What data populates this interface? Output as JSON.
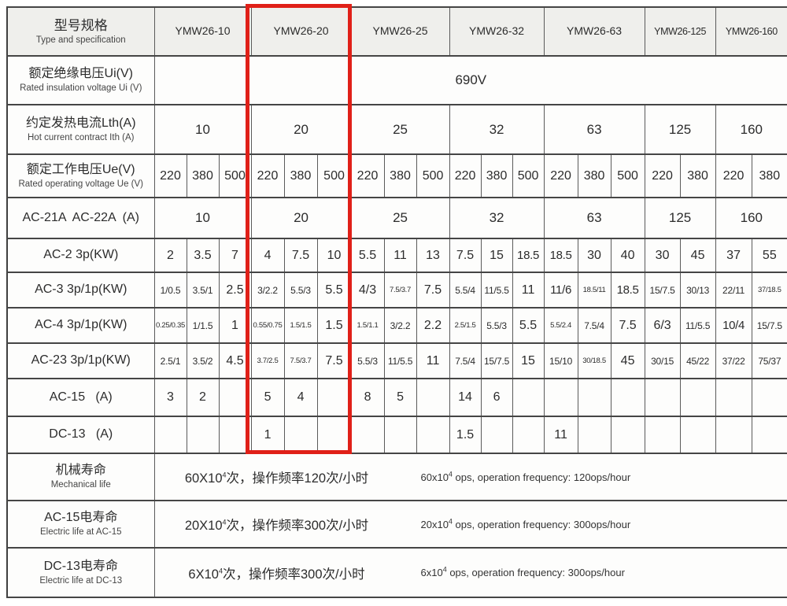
{
  "page": {
    "background": "#ffffff",
    "header_fill": "#efefec",
    "highlight_color": "#e02018",
    "highlighted_model": "YMW26-20"
  },
  "table": {
    "header": {
      "label_cn": "型号规格",
      "label_en": "Type and specification",
      "models": [
        {
          "name": "YMW26-10",
          "subcols": 3
        },
        {
          "name": "YMW26-20",
          "subcols": 3
        },
        {
          "name": "YMW26-25",
          "subcols": 3
        },
        {
          "name": "YMW26-32",
          "subcols": 3
        },
        {
          "name": "YMW26-63",
          "subcols": 3
        },
        {
          "name": "YMW26-125",
          "subcols": 2
        },
        {
          "name": "YMW26-160",
          "subcols": 2
        }
      ]
    },
    "rows": [
      {
        "id": "ui",
        "label_cn": "额定绝缘电压Ui(V)",
        "label_en": "Rated insulation voltage Ui (V)",
        "span": "full",
        "value": "690V"
      },
      {
        "id": "lth",
        "label_cn": "约定发热电流Lth(A)",
        "label_en": "Hot current contract Ith (A)",
        "span": "model",
        "values": [
          "10",
          "20",
          "25",
          "32",
          "63",
          "125",
          "160"
        ]
      },
      {
        "id": "ue",
        "label_cn": "额定工作电压Ue(V)",
        "label_en": "Rated operating voltage Ue (V)",
        "span": "sub",
        "values": [
          "220",
          "380",
          "500",
          "220",
          "380",
          "500",
          "220",
          "380",
          "500",
          "220",
          "380",
          "500",
          "220",
          "380",
          "500",
          "220",
          "380",
          "220",
          "380"
        ]
      },
      {
        "id": "ac21",
        "label_cn": "AC-21A  AC-22A  (A)",
        "label_en": "",
        "span": "model",
        "values": [
          "10",
          "20",
          "25",
          "32",
          "63",
          "125",
          "160"
        ]
      },
      {
        "id": "ac2",
        "label_cn": "AC-2 3p(KW)",
        "label_en": "",
        "span": "sub",
        "values": [
          "2",
          "3.5",
          "7",
          "4",
          "7.5",
          "10",
          "5.5",
          "11",
          "13",
          "7.5",
          "15",
          "18.5",
          "18.5",
          "30",
          "40",
          "30",
          "45",
          "37",
          "55"
        ]
      },
      {
        "id": "ac3",
        "label_cn": "AC-3 3p/1p(KW)",
        "label_en": "",
        "span": "sub",
        "values": [
          "1/0.5",
          "3.5/1",
          "2.5",
          "3/2.2",
          "5.5/3",
          "5.5",
          "4/3",
          "7.5/3.7",
          "7.5",
          "5.5/4",
          "11/5.5",
          "11",
          "11/6",
          "18.5/11",
          "18.5",
          "15/7.5",
          "30/13",
          "22/11",
          "37/18.5"
        ]
      },
      {
        "id": "ac4",
        "label_cn": "AC-4 3p/1p(KW)",
        "label_en": "",
        "span": "sub",
        "values": [
          "0.25/0.35",
          "1/1.5",
          "1",
          "0.55/0.75",
          "1.5/1.5",
          "1.5",
          "1.5/1.1",
          "3/2.2",
          "2.2",
          "2.5/1.5",
          "5.5/3",
          "5.5",
          "5.5/2.4",
          "7.5/4",
          "7.5",
          "6/3",
          "11/5.5",
          "10/4",
          "15/7.5"
        ]
      },
      {
        "id": "ac23",
        "label_cn": "AC-23 3p/1p(KW)",
        "label_en": "",
        "span": "sub",
        "values": [
          "2.5/1",
          "3.5/2",
          "4.5",
          "3.7/2.5",
          "7.5/3.7",
          "7.5",
          "5.5/3",
          "11/5.5",
          "11",
          "7.5/4",
          "15/7.5",
          "15",
          "15/10",
          "30/18.5",
          "45",
          "30/15",
          "45/22",
          "37/22",
          "75/37"
        ]
      },
      {
        "id": "ac15",
        "label_cn": "AC-15   (A)",
        "label_en": "",
        "span": "sub",
        "values": [
          "3",
          "2",
          "",
          "5",
          "4",
          "",
          "8",
          "5",
          "",
          "14",
          "6",
          "",
          "",
          "",
          "",
          "",
          "",
          "",
          ""
        ]
      },
      {
        "id": "dc13",
        "label_cn": "DC-13   (A)",
        "label_en": "",
        "span": "sub",
        "values": [
          "",
          "",
          "",
          "1",
          "",
          "",
          "",
          "",
          "",
          "1.5",
          "",
          "",
          "11",
          "",
          "",
          "",
          "",
          "",
          ""
        ]
      }
    ],
    "life_rows": [
      {
        "id": "mech-life",
        "label_cn": "机械寿命",
        "label_en": "Mechanical life",
        "cn_base": "60X10",
        "cn_sup": "4",
        "cn_rest": "次，操作频率120次/小时",
        "en_base": "60x10",
        "en_sup": "4",
        "en_rest": " ops, operation frequency: 120ops/hour"
      },
      {
        "id": "ac15-life",
        "label_cn": "AC-15电寿命",
        "label_en": "Electric life at AC-15",
        "cn_base": "20X10",
        "cn_sup": "4",
        "cn_rest": "次，操作频率300次/小时",
        "en_base": "20x10",
        "en_sup": "4",
        "en_rest": " ops, operation frequency: 300ops/hour"
      },
      {
        "id": "dc13-life",
        "label_cn": "DC-13电寿命",
        "label_en": "Electric life at DC-13",
        "cn_base": "6X10",
        "cn_sup": "4",
        "cn_rest": "次，操作频率300次/小时",
        "en_base": "6x10",
        "en_sup": "4",
        "en_rest": " ops, operation frequency: 300ops/hour"
      }
    ]
  }
}
